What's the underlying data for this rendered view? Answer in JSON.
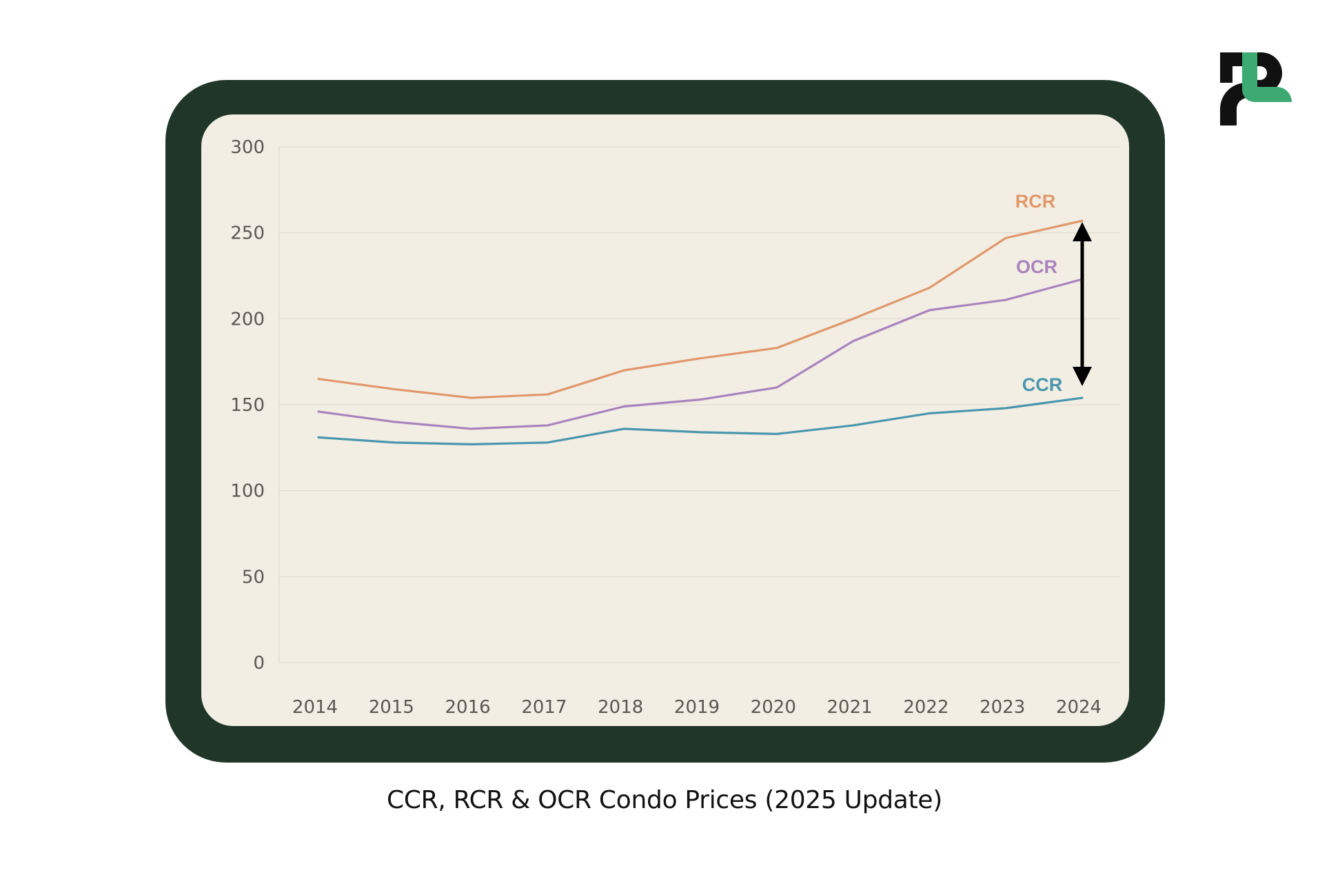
{
  "caption": "CCR, RCR & OCR Condo Prices (2025 Update)",
  "logo": {
    "icon": "brand-logo-icon",
    "colors": {
      "dark": "#111111",
      "accent": "#3daa73"
    }
  },
  "theme": {
    "frame": "#1f3628",
    "panel": "#f2eee4",
    "grid": "#e2ddd2",
    "tick_text": "#5a5750",
    "arrow": "#000000"
  },
  "chart_data": {
    "type": "line",
    "title": "CCR, RCR & OCR Condo Prices (2025 Update)",
    "xlabel": "",
    "ylabel": "",
    "x": [
      "2014",
      "2015",
      "2016",
      "2017",
      "2018",
      "2019",
      "2020",
      "2021",
      "2022",
      "2023",
      "2024"
    ],
    "ylim": [
      0,
      300
    ],
    "yticks": [
      0,
      50,
      100,
      150,
      200,
      250,
      300
    ],
    "grid": true,
    "legend": "inline-labels-right",
    "series": [
      {
        "name": "RCR",
        "color": "#e0976a",
        "values": [
          165,
          159,
          154,
          156,
          170,
          177,
          183,
          200,
          218,
          247,
          257
        ]
      },
      {
        "name": "OCR",
        "color": "#a983be",
        "values": [
          146,
          140,
          136,
          138,
          149,
          153,
          160,
          187,
          205,
          211,
          223
        ]
      },
      {
        "name": "CCR",
        "color": "#4a96ad",
        "values": [
          131,
          128,
          127,
          128,
          136,
          134,
          133,
          138,
          145,
          148,
          154
        ]
      }
    ],
    "annotations": [
      {
        "type": "double-arrow",
        "x": "2024",
        "from_series": "RCR",
        "to_series": "CCR",
        "meaning": "price gap between RCR and CCR"
      }
    ]
  }
}
